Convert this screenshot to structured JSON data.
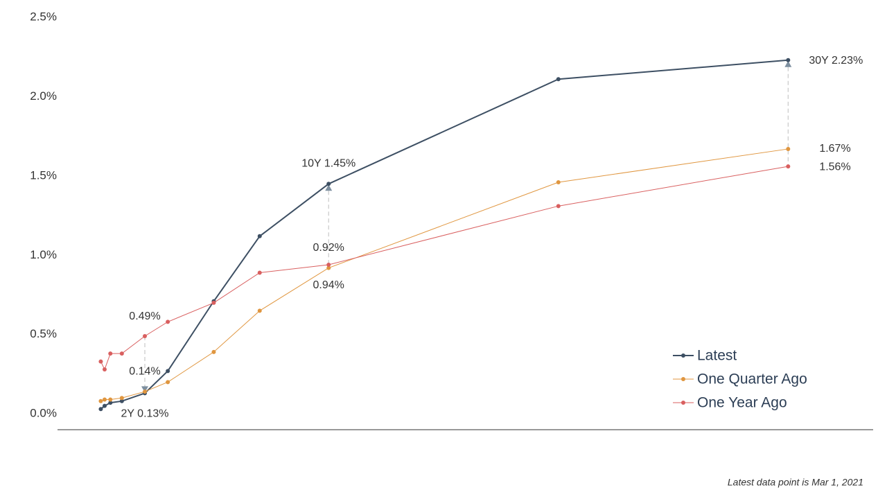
{
  "chart_data": {
    "type": "line",
    "x": [
      0.0833,
      0.25,
      0.5,
      1,
      2,
      3,
      5,
      7,
      10,
      20,
      30
    ],
    "xlim": [
      -1.8,
      33.7
    ],
    "ylim": [
      -0.1,
      2.5
    ],
    "yticks": [
      {
        "value": 0,
        "label": "0.0%"
      },
      {
        "value": 0.5,
        "label": "0.5%"
      },
      {
        "value": 1,
        "label": "1.0%"
      },
      {
        "value": 1.5,
        "label": "1.5%"
      },
      {
        "value": 2,
        "label": "2.0%"
      },
      {
        "value": 2.5,
        "label": "2.5%"
      }
    ],
    "series": [
      {
        "name": "Latest",
        "color": "#3d4f63",
        "values": [
          0.03,
          0.05,
          0.07,
          0.08,
          0.13,
          0.27,
          0.71,
          1.12,
          1.45,
          2.11,
          2.23
        ],
        "value_labels": [
          null,
          null,
          null,
          null,
          "2Y 0.13%",
          null,
          null,
          null,
          "10Y 1.45%",
          null,
          "30Y 2.23%"
        ]
      },
      {
        "name": "One Quarter Ago",
        "color": "#e0963f",
        "values": [
          0.08,
          0.09,
          0.09,
          0.1,
          0.14,
          0.2,
          0.39,
          0.65,
          0.92,
          1.46,
          1.67
        ],
        "value_labels": [
          null,
          null,
          null,
          null,
          "0.14%",
          null,
          null,
          null,
          "0.92%",
          null,
          "1.67%"
        ]
      },
      {
        "name": "One Year Ago",
        "color": "#d95f5f",
        "values": [
          0.33,
          0.28,
          0.38,
          0.38,
          0.49,
          0.58,
          0.7,
          0.89,
          0.94,
          1.31,
          1.56
        ],
        "value_labels": [
          null,
          null,
          null,
          null,
          "0.49%",
          null,
          null,
          null,
          "0.94%",
          null,
          "1.56%"
        ]
      }
    ],
    "legend": "lower right",
    "footnote": "Latest data point is Mar 1, 2021"
  }
}
